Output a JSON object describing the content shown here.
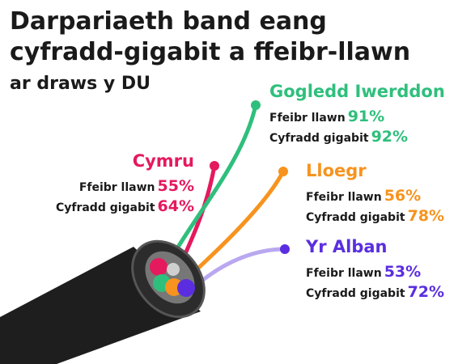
{
  "header": {
    "title": [
      "Darpariaeth band eang",
      "cyfradd-gigabit a ffeibr-llawn"
    ],
    "subtitle": "ar draws y DU"
  },
  "regions": [
    {
      "name": "Cymru",
      "color": "#e5195e",
      "rows": [
        {
          "label": "Ffeibr llawn",
          "value": "55%"
        },
        {
          "label": "Cyfradd gigabit",
          "value": "64%"
        }
      ]
    },
    {
      "name": "Gogledd Iwerddon",
      "color": "#2fbf7c",
      "rows": [
        {
          "label": "Ffeibr llawn",
          "value": "91%"
        },
        {
          "label": "Cyfradd gigabit",
          "value": "92%"
        }
      ]
    },
    {
      "name": "Lloegr",
      "color": "#f7931e",
      "rows": [
        {
          "label": "Ffeibr llawn",
          "value": "56%"
        },
        {
          "label": "Cyfradd gigabit",
          "value": "78%"
        }
      ]
    },
    {
      "name": "Yr Alban",
      "color": "#5a2ee0",
      "rows": [
        {
          "label": "Ffeibr llawn",
          "value": "53%"
        },
        {
          "label": "Cyfradd gigabit",
          "value": "72%"
        }
      ]
    }
  ]
}
